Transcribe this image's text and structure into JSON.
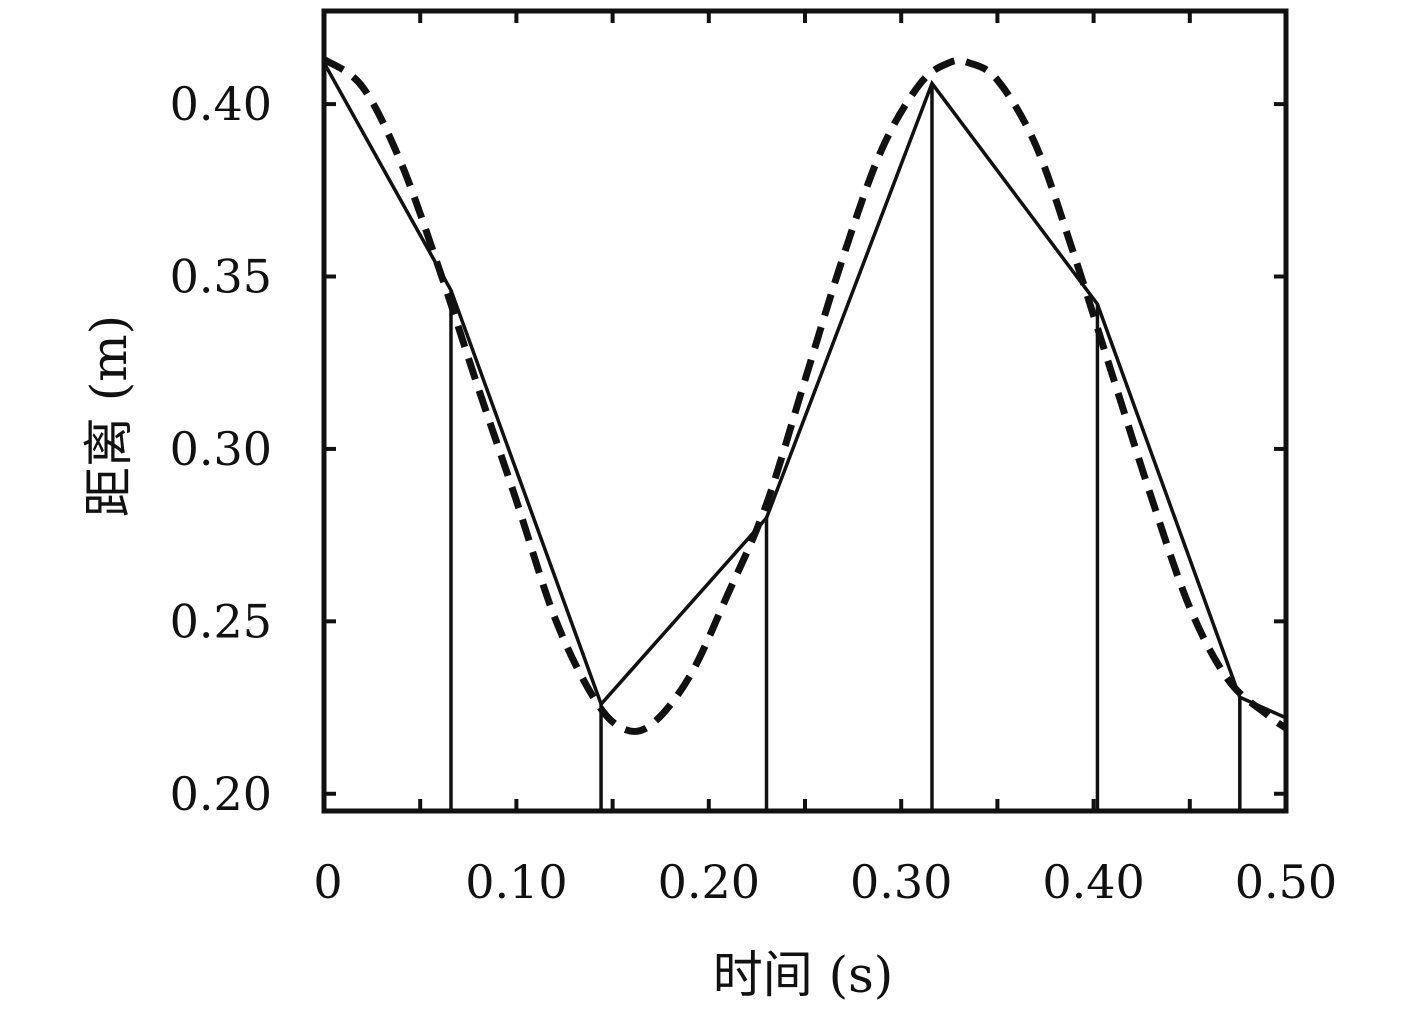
{
  "chart_data": {
    "type": "line",
    "title": "",
    "xlabel": "时间 (s)",
    "ylabel": "距离 (m)",
    "xlim": [
      0,
      0.5
    ],
    "ylim": [
      0.195,
      0.427
    ],
    "grid": false,
    "x_ticks": [
      {
        "value": 0,
        "label": "0"
      },
      {
        "value": 0.1,
        "label": "0.10"
      },
      {
        "value": 0.2,
        "label": "0.20"
      },
      {
        "value": 0.3,
        "label": "0.30"
      },
      {
        "value": 0.4,
        "label": "0.40"
      },
      {
        "value": 0.5,
        "label": "0.50"
      }
    ],
    "x_minor_ticks": [
      0.05,
      0.15,
      0.25,
      0.35,
      0.45
    ],
    "y_ticks": [
      {
        "value": 0.2,
        "label": "0.20"
      },
      {
        "value": 0.25,
        "label": "0.25"
      },
      {
        "value": 0.3,
        "label": "0.30"
      },
      {
        "value": 0.35,
        "label": "0.35"
      },
      {
        "value": 0.4,
        "label": "0.40"
      }
    ],
    "series": [
      {
        "style": "solid",
        "x": [
          0.0,
          0.066,
          0.144,
          0.23,
          0.316,
          0.402,
          0.476,
          0.5
        ],
        "y": [
          0.412,
          0.346,
          0.226,
          0.28,
          0.406,
          0.342,
          0.228,
          0.222
        ]
      },
      {
        "style": "dashed",
        "x": [
          0.0,
          0.02,
          0.04,
          0.06,
          0.08,
          0.1,
          0.12,
          0.14,
          0.155,
          0.17,
          0.19,
          0.21,
          0.23,
          0.25,
          0.27,
          0.29,
          0.31,
          0.325,
          0.335,
          0.35,
          0.37,
          0.39,
          0.41,
          0.43,
          0.45,
          0.47,
          0.49,
          0.5
        ],
        "y": [
          0.413,
          0.405,
          0.383,
          0.352,
          0.318,
          0.285,
          0.251,
          0.228,
          0.219,
          0.22,
          0.234,
          0.258,
          0.284,
          0.32,
          0.356,
          0.387,
          0.406,
          0.412,
          0.412,
          0.407,
          0.388,
          0.356,
          0.321,
          0.286,
          0.254,
          0.233,
          0.223,
          0.219
        ]
      }
    ],
    "sample_lines_x": [
      0.066,
      0.144,
      0.23,
      0.316,
      0.402,
      0.476
    ]
  }
}
